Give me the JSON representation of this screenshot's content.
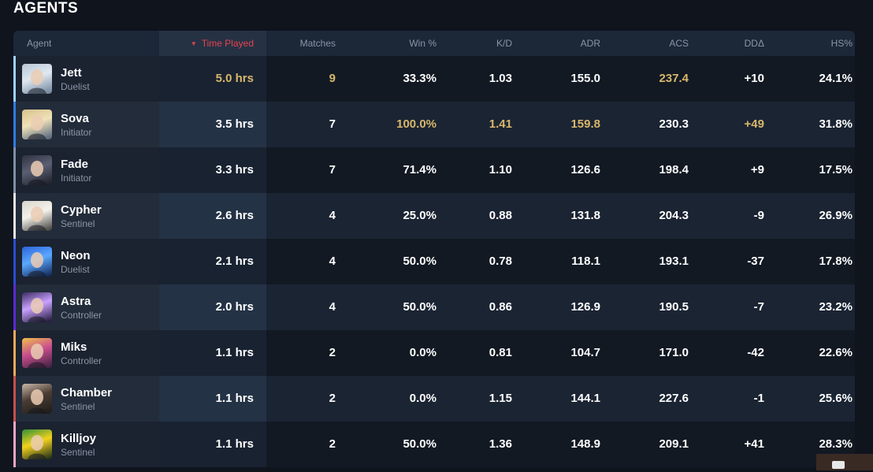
{
  "section_title": "AGENTS",
  "columns": {
    "agent": "Agent",
    "time_played": "Time Played",
    "matches": "Matches",
    "win": "Win %",
    "kd": "K/D",
    "adr": "ADR",
    "acs": "ACS",
    "dd": "DDΔ",
    "hs": "HS%"
  },
  "colors": {
    "highlight": "#d8b76b",
    "sort_active": "#e8424f",
    "role_bars": [
      "#9fd1ff",
      "#2f7de0",
      "#7f8fa6",
      "#e6e6e6",
      "#2a4bd1",
      "#5b2bd6",
      "#f0a85a",
      "#c6504a",
      "#f2a6c7"
    ]
  },
  "rows": [
    {
      "name": "Jett",
      "role": "Duelist",
      "time": "5.0 hrs",
      "matches": "9",
      "win": "33.3%",
      "kd": "1.03",
      "adr": "155.0",
      "acs": "237.4",
      "dd": "+10",
      "hs": "24.1%",
      "portrait_icon": "jett-portrait-icon"
    },
    {
      "name": "Sova",
      "role": "Initiator",
      "time": "3.5 hrs",
      "matches": "7",
      "win": "100.0%",
      "kd": "1.41",
      "adr": "159.8",
      "acs": "230.3",
      "dd": "+49",
      "hs": "31.8%",
      "portrait_icon": "sova-portrait-icon"
    },
    {
      "name": "Fade",
      "role": "Initiator",
      "time": "3.3 hrs",
      "matches": "7",
      "win": "71.4%",
      "kd": "1.10",
      "adr": "126.6",
      "acs": "198.4",
      "dd": "+9",
      "hs": "17.5%",
      "portrait_icon": "fade-portrait-icon"
    },
    {
      "name": "Cypher",
      "role": "Sentinel",
      "time": "2.6 hrs",
      "matches": "4",
      "win": "25.0%",
      "kd": "0.88",
      "adr": "131.8",
      "acs": "204.3",
      "dd": "-9",
      "hs": "26.9%",
      "portrait_icon": "cypher-portrait-icon"
    },
    {
      "name": "Neon",
      "role": "Duelist",
      "time": "2.1 hrs",
      "matches": "4",
      "win": "50.0%",
      "kd": "0.78",
      "adr": "118.1",
      "acs": "193.1",
      "dd": "-37",
      "hs": "17.8%",
      "portrait_icon": "neon-portrait-icon"
    },
    {
      "name": "Astra",
      "role": "Controller",
      "time": "2.0 hrs",
      "matches": "4",
      "win": "50.0%",
      "kd": "0.86",
      "adr": "126.9",
      "acs": "190.5",
      "dd": "-7",
      "hs": "23.2%",
      "portrait_icon": "astra-portrait-icon"
    },
    {
      "name": "Miks",
      "role": "Controller",
      "time": "1.1 hrs",
      "matches": "2",
      "win": "0.0%",
      "kd": "0.81",
      "adr": "104.7",
      "acs": "171.0",
      "dd": "-42",
      "hs": "22.6%",
      "portrait_icon": "miks-portrait-icon"
    },
    {
      "name": "Chamber",
      "role": "Sentinel",
      "time": "1.1 hrs",
      "matches": "2",
      "win": "0.0%",
      "kd": "1.15",
      "adr": "144.1",
      "acs": "227.6",
      "dd": "-1",
      "hs": "25.6%",
      "portrait_icon": "chamber-portrait-icon"
    },
    {
      "name": "Killjoy",
      "role": "Sentinel",
      "time": "1.1 hrs",
      "matches": "2",
      "win": "50.0%",
      "kd": "1.36",
      "adr": "148.9",
      "acs": "209.1",
      "dd": "+41",
      "hs": "28.3%",
      "portrait_icon": "killjoy-portrait-icon"
    }
  ],
  "highlighted_cells": [
    {
      "row": 0,
      "col": "time"
    },
    {
      "row": 0,
      "col": "matches"
    },
    {
      "row": 0,
      "col": "acs"
    },
    {
      "row": 1,
      "col": "win"
    },
    {
      "row": 1,
      "col": "kd"
    },
    {
      "row": 1,
      "col": "adr"
    },
    {
      "row": 1,
      "col": "dd"
    }
  ]
}
